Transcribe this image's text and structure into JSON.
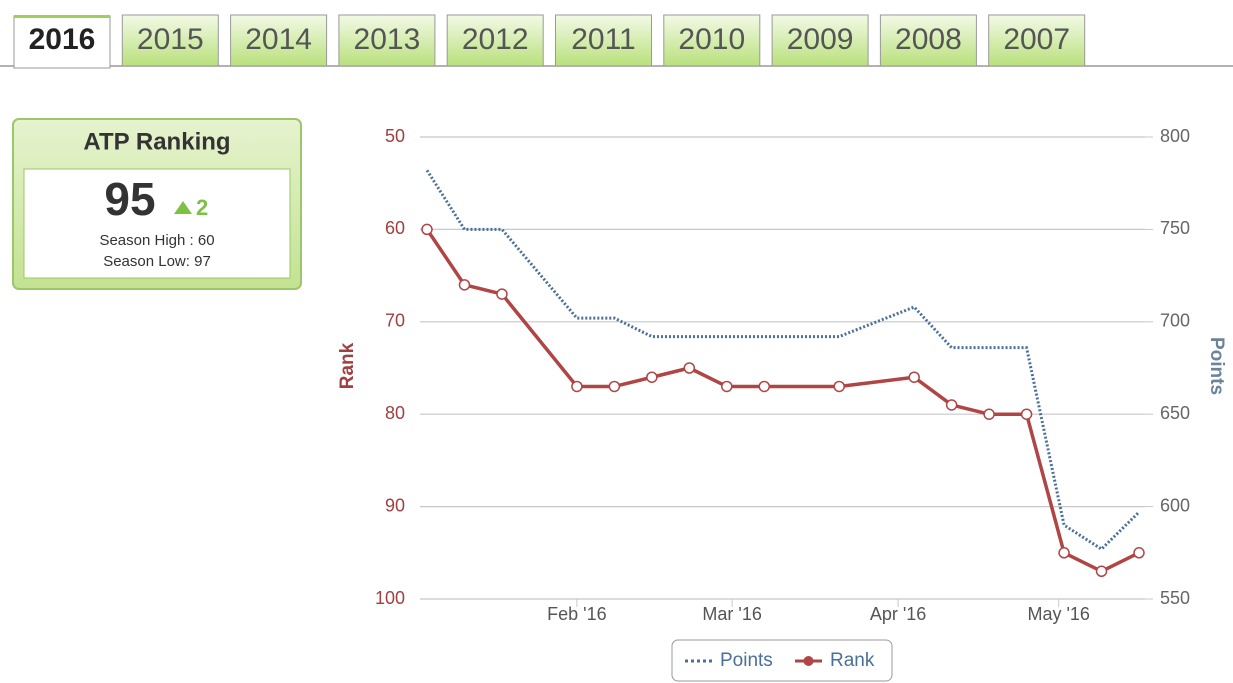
{
  "tabs": [
    "2016",
    "2015",
    "2014",
    "2013",
    "2012",
    "2011",
    "2010",
    "2009",
    "2008",
    "2007"
  ],
  "selected_tab": 0,
  "ranking_card": {
    "title": "ATP Ranking",
    "rank": 95,
    "change": 2,
    "season_high": "Season High : 60",
    "season_low": "Season Low: 97"
  },
  "chart_data": {
    "type": "line",
    "ylabel": "Rank",
    "y2label": "Points",
    "x": [
      4,
      11,
      18,
      32,
      39,
      46,
      53,
      60,
      67,
      81,
      95,
      102,
      109,
      116,
      123,
      130,
      137
    ],
    "xlim": [
      4,
      137
    ],
    "xticks": [
      {
        "value": 32,
        "label": "Feb '16"
      },
      {
        "value": 61,
        "label": "Mar '16"
      },
      {
        "value": 92,
        "label": "Apr '16"
      },
      {
        "value": 122,
        "label": "May '16"
      }
    ],
    "ylim": [
      100,
      50
    ],
    "yticks": [
      50,
      60,
      70,
      80,
      90,
      100
    ],
    "y2lim": [
      550,
      800
    ],
    "y2ticks": [
      550,
      600,
      650,
      700,
      750,
      800
    ],
    "grid": true,
    "series": [
      {
        "name": "Points",
        "color": "#4a6f99",
        "axis": "y2",
        "dashed": true,
        "values": [
          782,
          750,
          750,
          702,
          702,
          692,
          692,
          692,
          692,
          692,
          708,
          686,
          686,
          686,
          590,
          577,
          597
        ]
      },
      {
        "name": "Rank",
        "color": "#b04545",
        "markers": true,
        "values": [
          60,
          66,
          67,
          77,
          77,
          76,
          75,
          77,
          77,
          77,
          76,
          79,
          80,
          80,
          95,
          97,
          95
        ]
      }
    ]
  }
}
